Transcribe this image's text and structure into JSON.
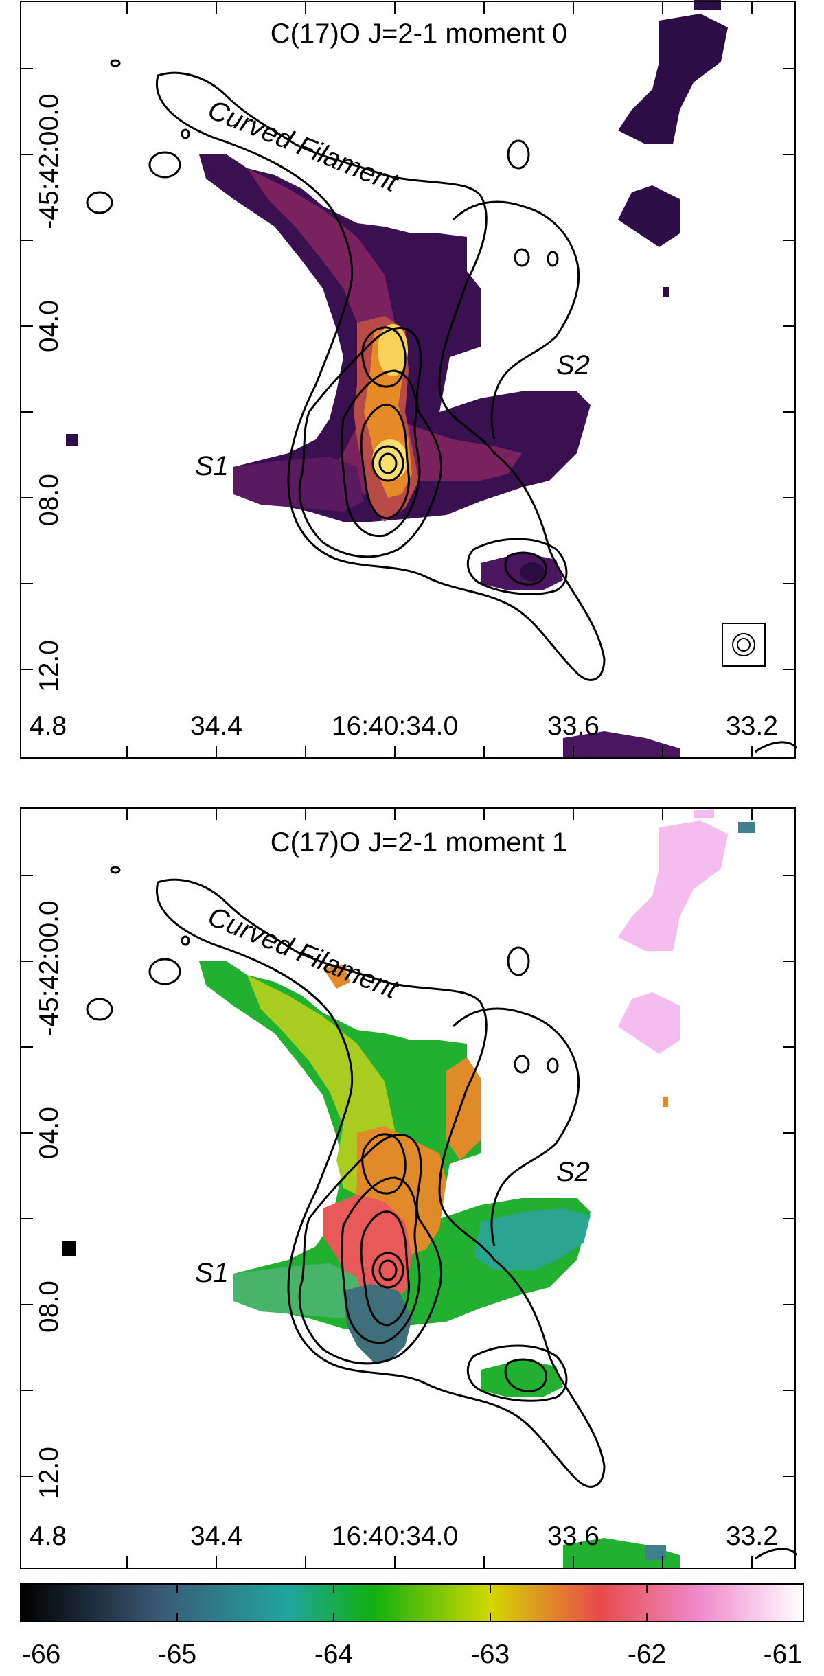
{
  "panels": [
    {
      "title": "C(17)O J=2-1 moment 0",
      "map": "intensity",
      "y_ticks": [
        "-45:42:00.0",
        "04.0",
        "08.0",
        "12.0"
      ],
      "x_ticks": [
        "4.8",
        "34.4",
        "16:40:34.0",
        "33.6",
        "33.2"
      ],
      "annotations": [
        "Curved Filament",
        "S1",
        "S2"
      ],
      "has_beam": true
    },
    {
      "title": "C(17)O J=2-1 moment 1",
      "map": "velocity",
      "y_ticks": [
        "-45:42:00.0",
        "04.0",
        "08.0",
        "12.0"
      ],
      "x_ticks": [
        "4.8",
        "34.4",
        "16:40:34.0",
        "33.6",
        "33.2"
      ],
      "annotations": [
        "Curved Filament",
        "S1",
        "S2"
      ],
      "has_beam": false
    }
  ],
  "colorbar": {
    "ticks": [
      "-66",
      "-65",
      "-64",
      "-63",
      "-62",
      "-61"
    ],
    "range": [
      -66,
      -61
    ],
    "stops": [
      "#000000",
      "#3a5a78",
      "#20a5a0",
      "#10b010",
      "#d4d700",
      "#e84a4a",
      "#f08cd0",
      "#ffffff"
    ]
  },
  "colors": {
    "moment0": [
      "#2c0d45",
      "#5a1a60",
      "#8a2a60",
      "#c85a3a",
      "#f0a020",
      "#f8e060"
    ],
    "moment1_ramp": [
      "#3f6f7a",
      "#2aa590",
      "#22b030",
      "#98cc20",
      "#d8c820",
      "#e08a2a",
      "#e85a5a",
      "#f5a8e0",
      "#f8c8f4"
    ]
  }
}
